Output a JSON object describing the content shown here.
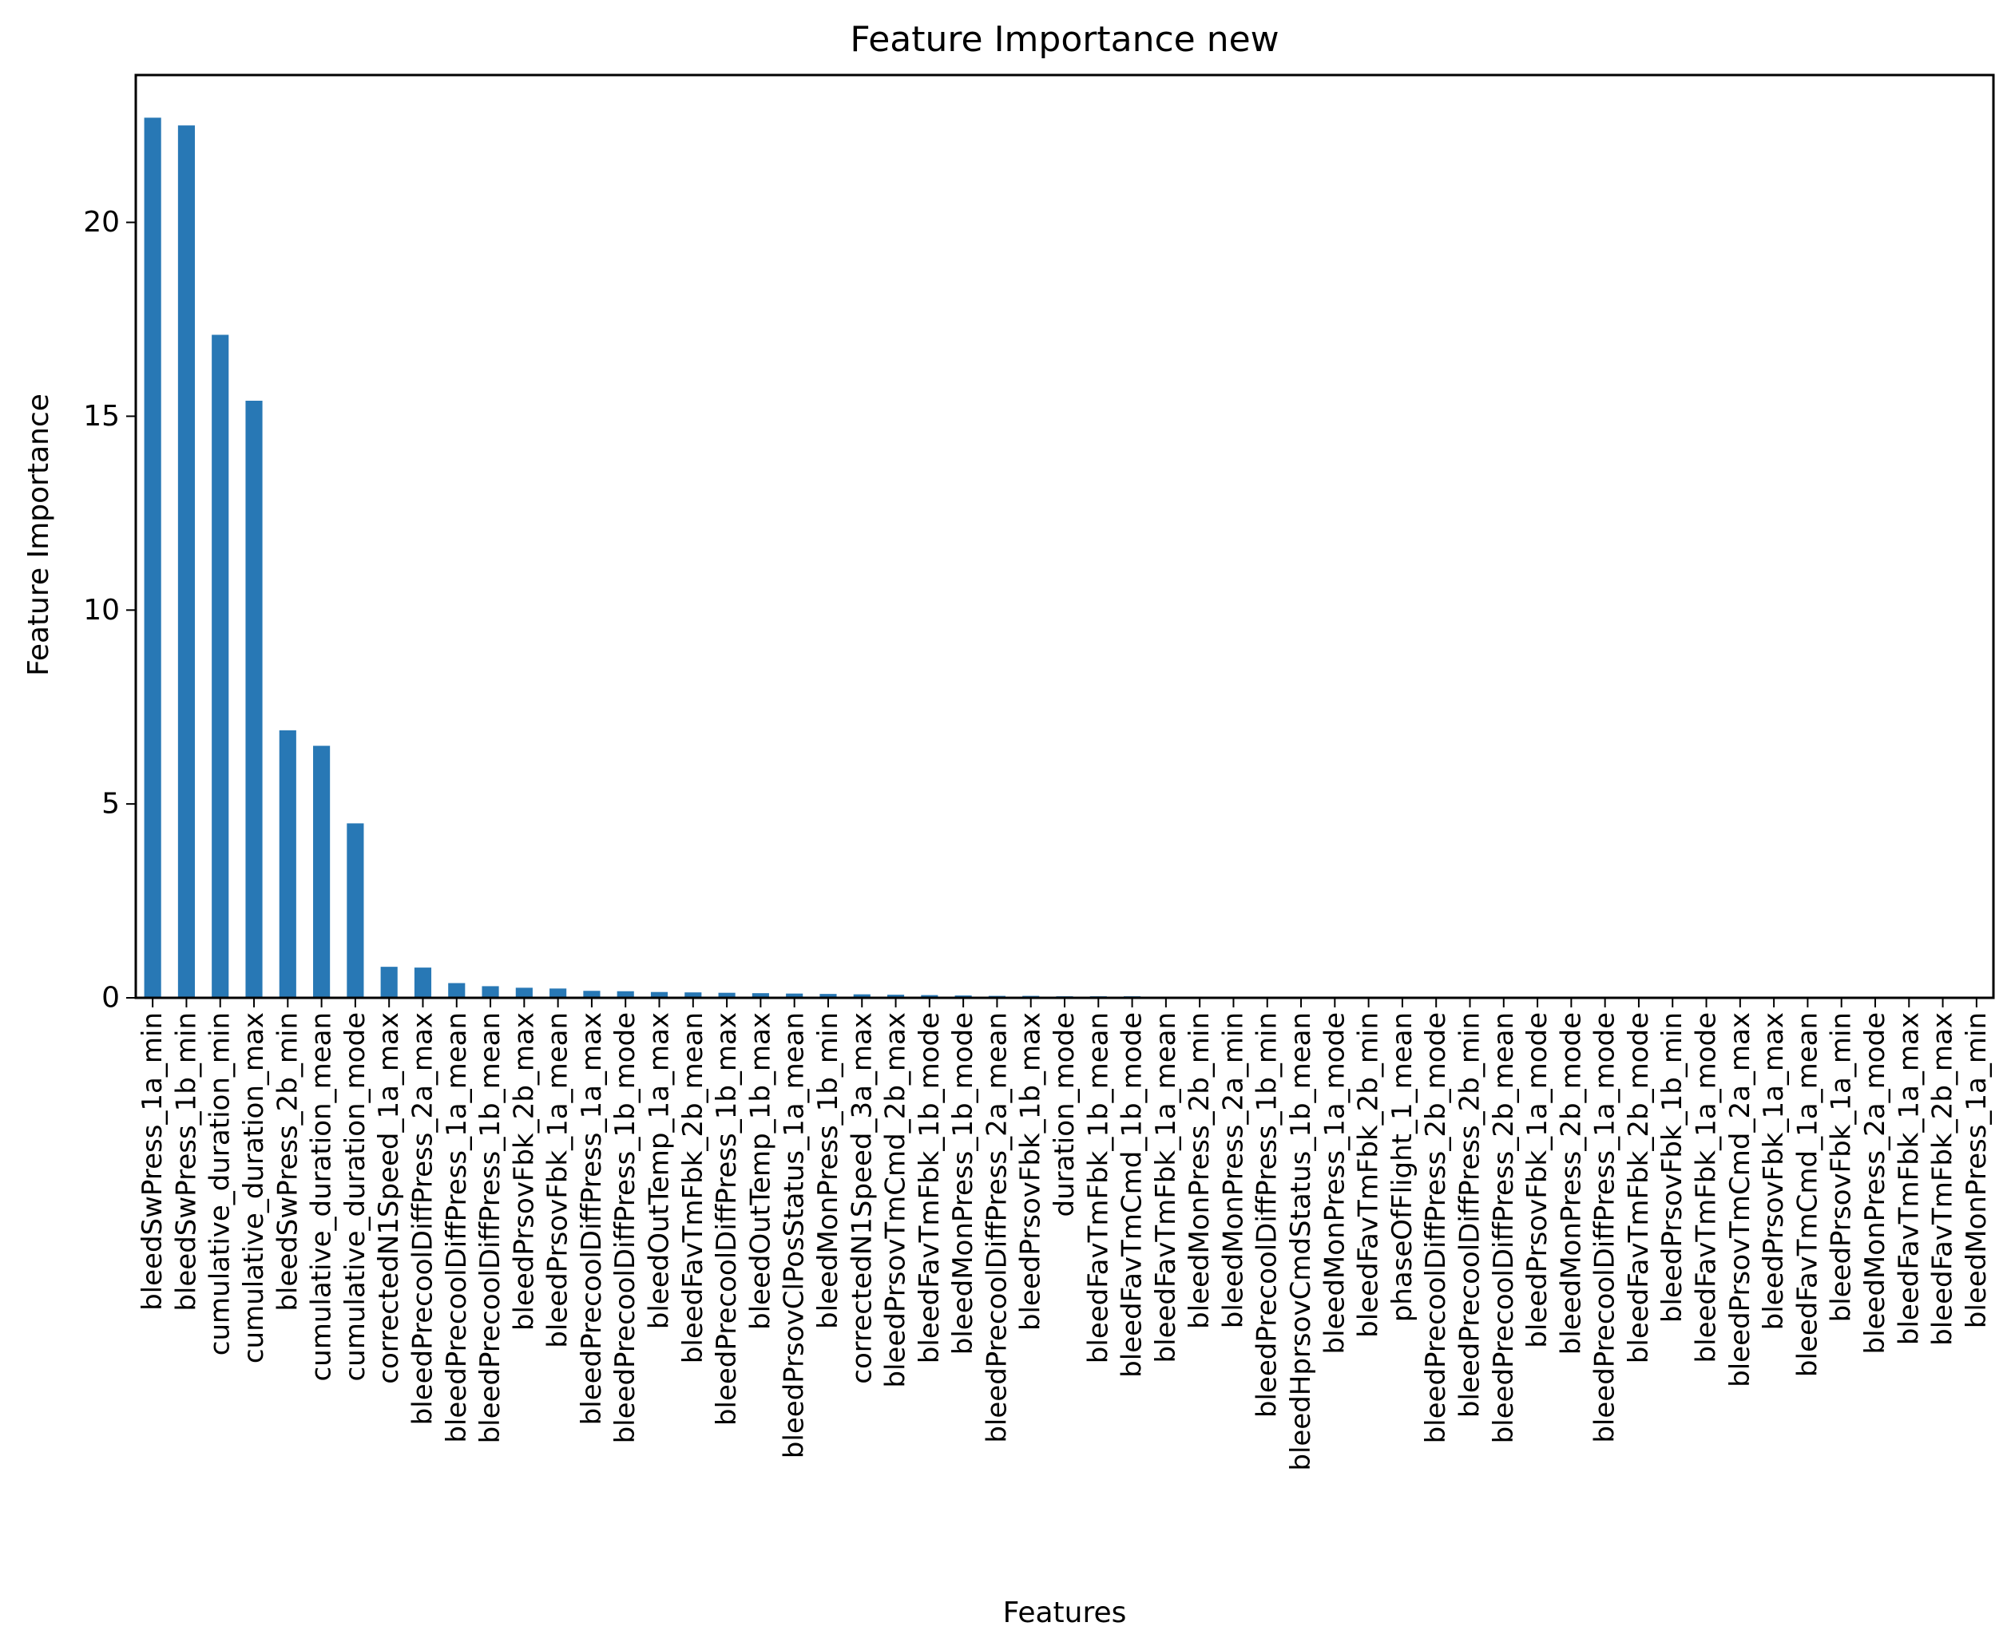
{
  "chart_data": {
    "type": "bar",
    "title": "Feature Importance new",
    "xlabel": "Features",
    "ylabel": "Feature Importance",
    "ylim": [
      0,
      23.8
    ],
    "yticks": [
      0,
      5,
      10,
      15,
      20
    ],
    "grid": false,
    "legend": "none",
    "bar_color": "#2878b5",
    "categories": [
      "bleedSwPress_1a_min",
      "bleedSwPress_1b_min",
      "cumulative_duration_min",
      "cumulative_duration_max",
      "bleedSwPress_2b_min",
      "cumulative_duration_mean",
      "cumulative_duration_mode",
      "correctedN1Speed_1a_max",
      "bleedPrecoolDiffPress_2a_max",
      "bleedPrecoolDiffPress_1a_mean",
      "bleedPrecoolDiffPress_1b_mean",
      "bleedPrsovFbk_2b_max",
      "bleedPrsovFbk_1a_mean",
      "bleedPrecoolDiffPress_1a_max",
      "bleedPrecoolDiffPress_1b_mode",
      "bleedOutTemp_1a_max",
      "bleedFavTmFbk_2b_mean",
      "bleedPrecoolDiffPress_1b_max",
      "bleedOutTemp_1b_max",
      "bleedPrsovClPosStatus_1a_mean",
      "bleedMonPress_1b_min",
      "correctedN1Speed_3a_max",
      "bleedPrsovTmCmd_2b_max",
      "bleedFavTmFbk_1b_mode",
      "bleedMonPress_1b_mode",
      "bleedPrecoolDiffPress_2a_mean",
      "bleedPrsovFbk_1b_max",
      "duration_mode",
      "bleedFavTmFbk_1b_mean",
      "bleedFavTmCmd_1b_mode",
      "bleedFavTmFbk_1a_mean",
      "bleedMonPress_2b_min",
      "bleedMonPress_2a_min",
      "bleedPrecoolDiffPress_1b_min",
      "bleedHprsovCmdStatus_1b_mean",
      "bleedMonPress_1a_mode",
      "bleedFavTmFbk_2b_min",
      "phaseOfFlight_1_mean",
      "bleedPrecoolDiffPress_2b_mode",
      "bleedPrecoolDiffPress_2b_min",
      "bleedPrecoolDiffPress_2b_mean",
      "bleedPrsovFbk_1a_mode",
      "bleedMonPress_2b_mode",
      "bleedPrecoolDiffPress_1a_mode",
      "bleedFavTmFbk_2b_mode",
      "bleedPrsovFbk_1b_min",
      "bleedFavTmFbk_1a_mode",
      "bleedPrsovTmCmd_2a_max",
      "bleedPrsovFbk_1a_max",
      "bleedFavTmCmd_1a_mean",
      "bleedPrsovFbk_1a_min",
      "bleedMonPress_2a_mode",
      "bleedFavTmFbk_1a_max",
      "bleedFavTmFbk_2b_max",
      "bleedMonPress_1a_min"
    ],
    "values": [
      22.7,
      22.5,
      17.1,
      15.4,
      6.9,
      6.5,
      4.5,
      0.8,
      0.78,
      0.38,
      0.3,
      0.26,
      0.24,
      0.18,
      0.17,
      0.15,
      0.14,
      0.13,
      0.12,
      0.11,
      0.1,
      0.09,
      0.08,
      0.07,
      0.06,
      0.05,
      0.05,
      0.04,
      0.04,
      0.04,
      0.03,
      0.03,
      0.03,
      0.02,
      0.02,
      0.01,
      0.01,
      0.01,
      0.01,
      0.01,
      0.01,
      0.0,
      0.0,
      0.0,
      0.0,
      0.0,
      0.0,
      0.0,
      0.0,
      0.0,
      0.0,
      0.0,
      0.0,
      0.0,
      0.0
    ]
  }
}
